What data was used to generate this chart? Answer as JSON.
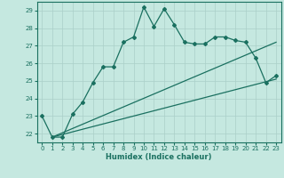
{
  "xlabel": "Humidex (Indice chaleur)",
  "ylabel": "",
  "bg_color": "#c5e8e0",
  "grid_color": "#aacfc8",
  "line_color": "#1a7060",
  "xlim": [
    -0.5,
    23.5
  ],
  "ylim": [
    21.5,
    29.5
  ],
  "yticks": [
    22,
    23,
    24,
    25,
    26,
    27,
    28,
    29
  ],
  "xticks": [
    0,
    1,
    2,
    3,
    4,
    5,
    6,
    7,
    8,
    9,
    10,
    11,
    12,
    13,
    14,
    15,
    16,
    17,
    18,
    19,
    20,
    21,
    22,
    23
  ],
  "main_x": [
    0,
    1,
    2,
    3,
    4,
    5,
    6,
    7,
    8,
    9,
    10,
    11,
    12,
    13,
    14,
    15,
    16,
    17,
    18,
    19,
    20,
    21,
    22,
    23
  ],
  "main_y": [
    23.0,
    21.8,
    21.8,
    23.1,
    23.8,
    24.9,
    25.8,
    25.8,
    27.2,
    27.5,
    29.2,
    28.1,
    29.1,
    28.2,
    27.2,
    27.1,
    27.1,
    27.5,
    27.5,
    27.3,
    27.2,
    26.3,
    24.9,
    25.3
  ],
  "line2_x": [
    1,
    23
  ],
  "line2_y": [
    21.8,
    27.2
  ],
  "line3_x": [
    1,
    23
  ],
  "line3_y": [
    21.8,
    25.1
  ]
}
